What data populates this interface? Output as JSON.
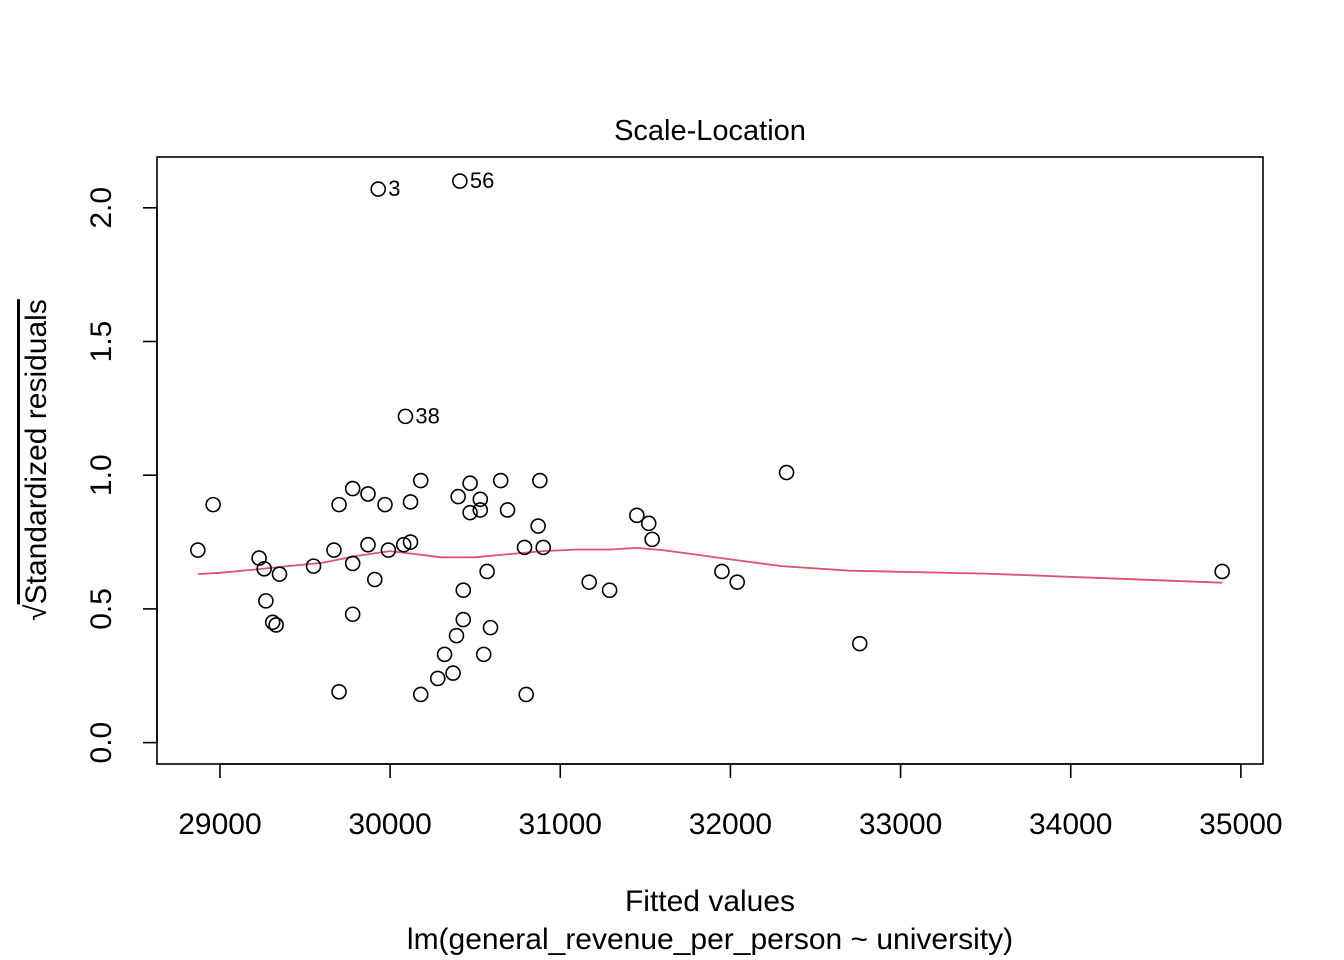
{
  "chart_data": {
    "type": "scatter",
    "title": "Scale-Location",
    "xlabel": "Fitted values",
    "xsublabel": "lm(general_revenue_per_person ~ university)",
    "ylabel": "Standardized residuals",
    "ylabel_prefix": "√",
    "xlim": [
      28630,
      35130
    ],
    "ylim": [
      -0.08,
      2.19
    ],
    "xticks": [
      29000,
      30000,
      31000,
      32000,
      33000,
      34000,
      35000
    ],
    "yticks": [
      0.0,
      0.5,
      1.0,
      1.5,
      2.0
    ],
    "xtick_labels": [
      "29000",
      "30000",
      "31000",
      "32000",
      "33000",
      "34000",
      "35000"
    ],
    "ytick_labels": [
      "0.0",
      "0.5",
      "1.0",
      "1.5",
      "2.0"
    ],
    "points": [
      {
        "x": 28870,
        "y": 0.72
      },
      {
        "x": 28960,
        "y": 0.89
      },
      {
        "x": 29230,
        "y": 0.69
      },
      {
        "x": 29260,
        "y": 0.65
      },
      {
        "x": 29270,
        "y": 0.53
      },
      {
        "x": 29310,
        "y": 0.45
      },
      {
        "x": 29330,
        "y": 0.44
      },
      {
        "x": 29350,
        "y": 0.63
      },
      {
        "x": 29550,
        "y": 0.66
      },
      {
        "x": 29670,
        "y": 0.72
      },
      {
        "x": 29700,
        "y": 0.89
      },
      {
        "x": 29700,
        "y": 0.19
      },
      {
        "x": 29780,
        "y": 0.95
      },
      {
        "x": 29780,
        "y": 0.67
      },
      {
        "x": 29780,
        "y": 0.48
      },
      {
        "x": 29870,
        "y": 0.93
      },
      {
        "x": 29870,
        "y": 0.74
      },
      {
        "x": 29910,
        "y": 0.61
      },
      {
        "x": 29930,
        "y": 2.07,
        "label": "3"
      },
      {
        "x": 29970,
        "y": 0.89
      },
      {
        "x": 29990,
        "y": 0.72
      },
      {
        "x": 30080,
        "y": 0.74
      },
      {
        "x": 30090,
        "y": 1.22,
        "label": "38"
      },
      {
        "x": 30120,
        "y": 0.75
      },
      {
        "x": 30120,
        "y": 0.9
      },
      {
        "x": 30180,
        "y": 0.98
      },
      {
        "x": 30180,
        "y": 0.18
      },
      {
        "x": 30280,
        "y": 0.24
      },
      {
        "x": 30320,
        "y": 0.33
      },
      {
        "x": 30370,
        "y": 0.26
      },
      {
        "x": 30390,
        "y": 0.4
      },
      {
        "x": 30400,
        "y": 0.92
      },
      {
        "x": 30410,
        "y": 2.1,
        "label": "56"
      },
      {
        "x": 30430,
        "y": 0.57
      },
      {
        "x": 30430,
        "y": 0.46
      },
      {
        "x": 30470,
        "y": 0.97
      },
      {
        "x": 30470,
        "y": 0.86
      },
      {
        "x": 30530,
        "y": 0.91
      },
      {
        "x": 30530,
        "y": 0.87
      },
      {
        "x": 30550,
        "y": 0.33
      },
      {
        "x": 30570,
        "y": 0.64
      },
      {
        "x": 30590,
        "y": 0.43
      },
      {
        "x": 30650,
        "y": 0.98
      },
      {
        "x": 30690,
        "y": 0.87
      },
      {
        "x": 30790,
        "y": 0.73
      },
      {
        "x": 30800,
        "y": 0.18
      },
      {
        "x": 30870,
        "y": 0.81
      },
      {
        "x": 30880,
        "y": 0.98
      },
      {
        "x": 30900,
        "y": 0.73
      },
      {
        "x": 31170,
        "y": 0.6
      },
      {
        "x": 31290,
        "y": 0.57
      },
      {
        "x": 31450,
        "y": 0.85
      },
      {
        "x": 31520,
        "y": 0.82
      },
      {
        "x": 31540,
        "y": 0.76
      },
      {
        "x": 31950,
        "y": 0.64
      },
      {
        "x": 32040,
        "y": 0.6
      },
      {
        "x": 32330,
        "y": 1.01
      },
      {
        "x": 32760,
        "y": 0.37
      },
      {
        "x": 34890,
        "y": 0.64
      }
    ],
    "smooth_line": {
      "color": "#DF536B",
      "x": [
        28870,
        29000,
        29200,
        29400,
        29600,
        29800,
        30000,
        30150,
        30300,
        30500,
        30700,
        30900,
        31100,
        31300,
        31450,
        31600,
        31800,
        32000,
        32300,
        32700,
        33500,
        34200,
        34890
      ],
      "y": [
        0.63,
        0.635,
        0.647,
        0.66,
        0.672,
        0.698,
        0.716,
        0.705,
        0.693,
        0.693,
        0.705,
        0.716,
        0.722,
        0.722,
        0.728,
        0.72,
        0.703,
        0.685,
        0.66,
        0.643,
        0.632,
        0.615,
        0.598
      ]
    },
    "colors": {
      "points": "#000000",
      "smooth": "#DF536B",
      "frame": "#000000"
    },
    "grid": false,
    "legend": "none"
  }
}
